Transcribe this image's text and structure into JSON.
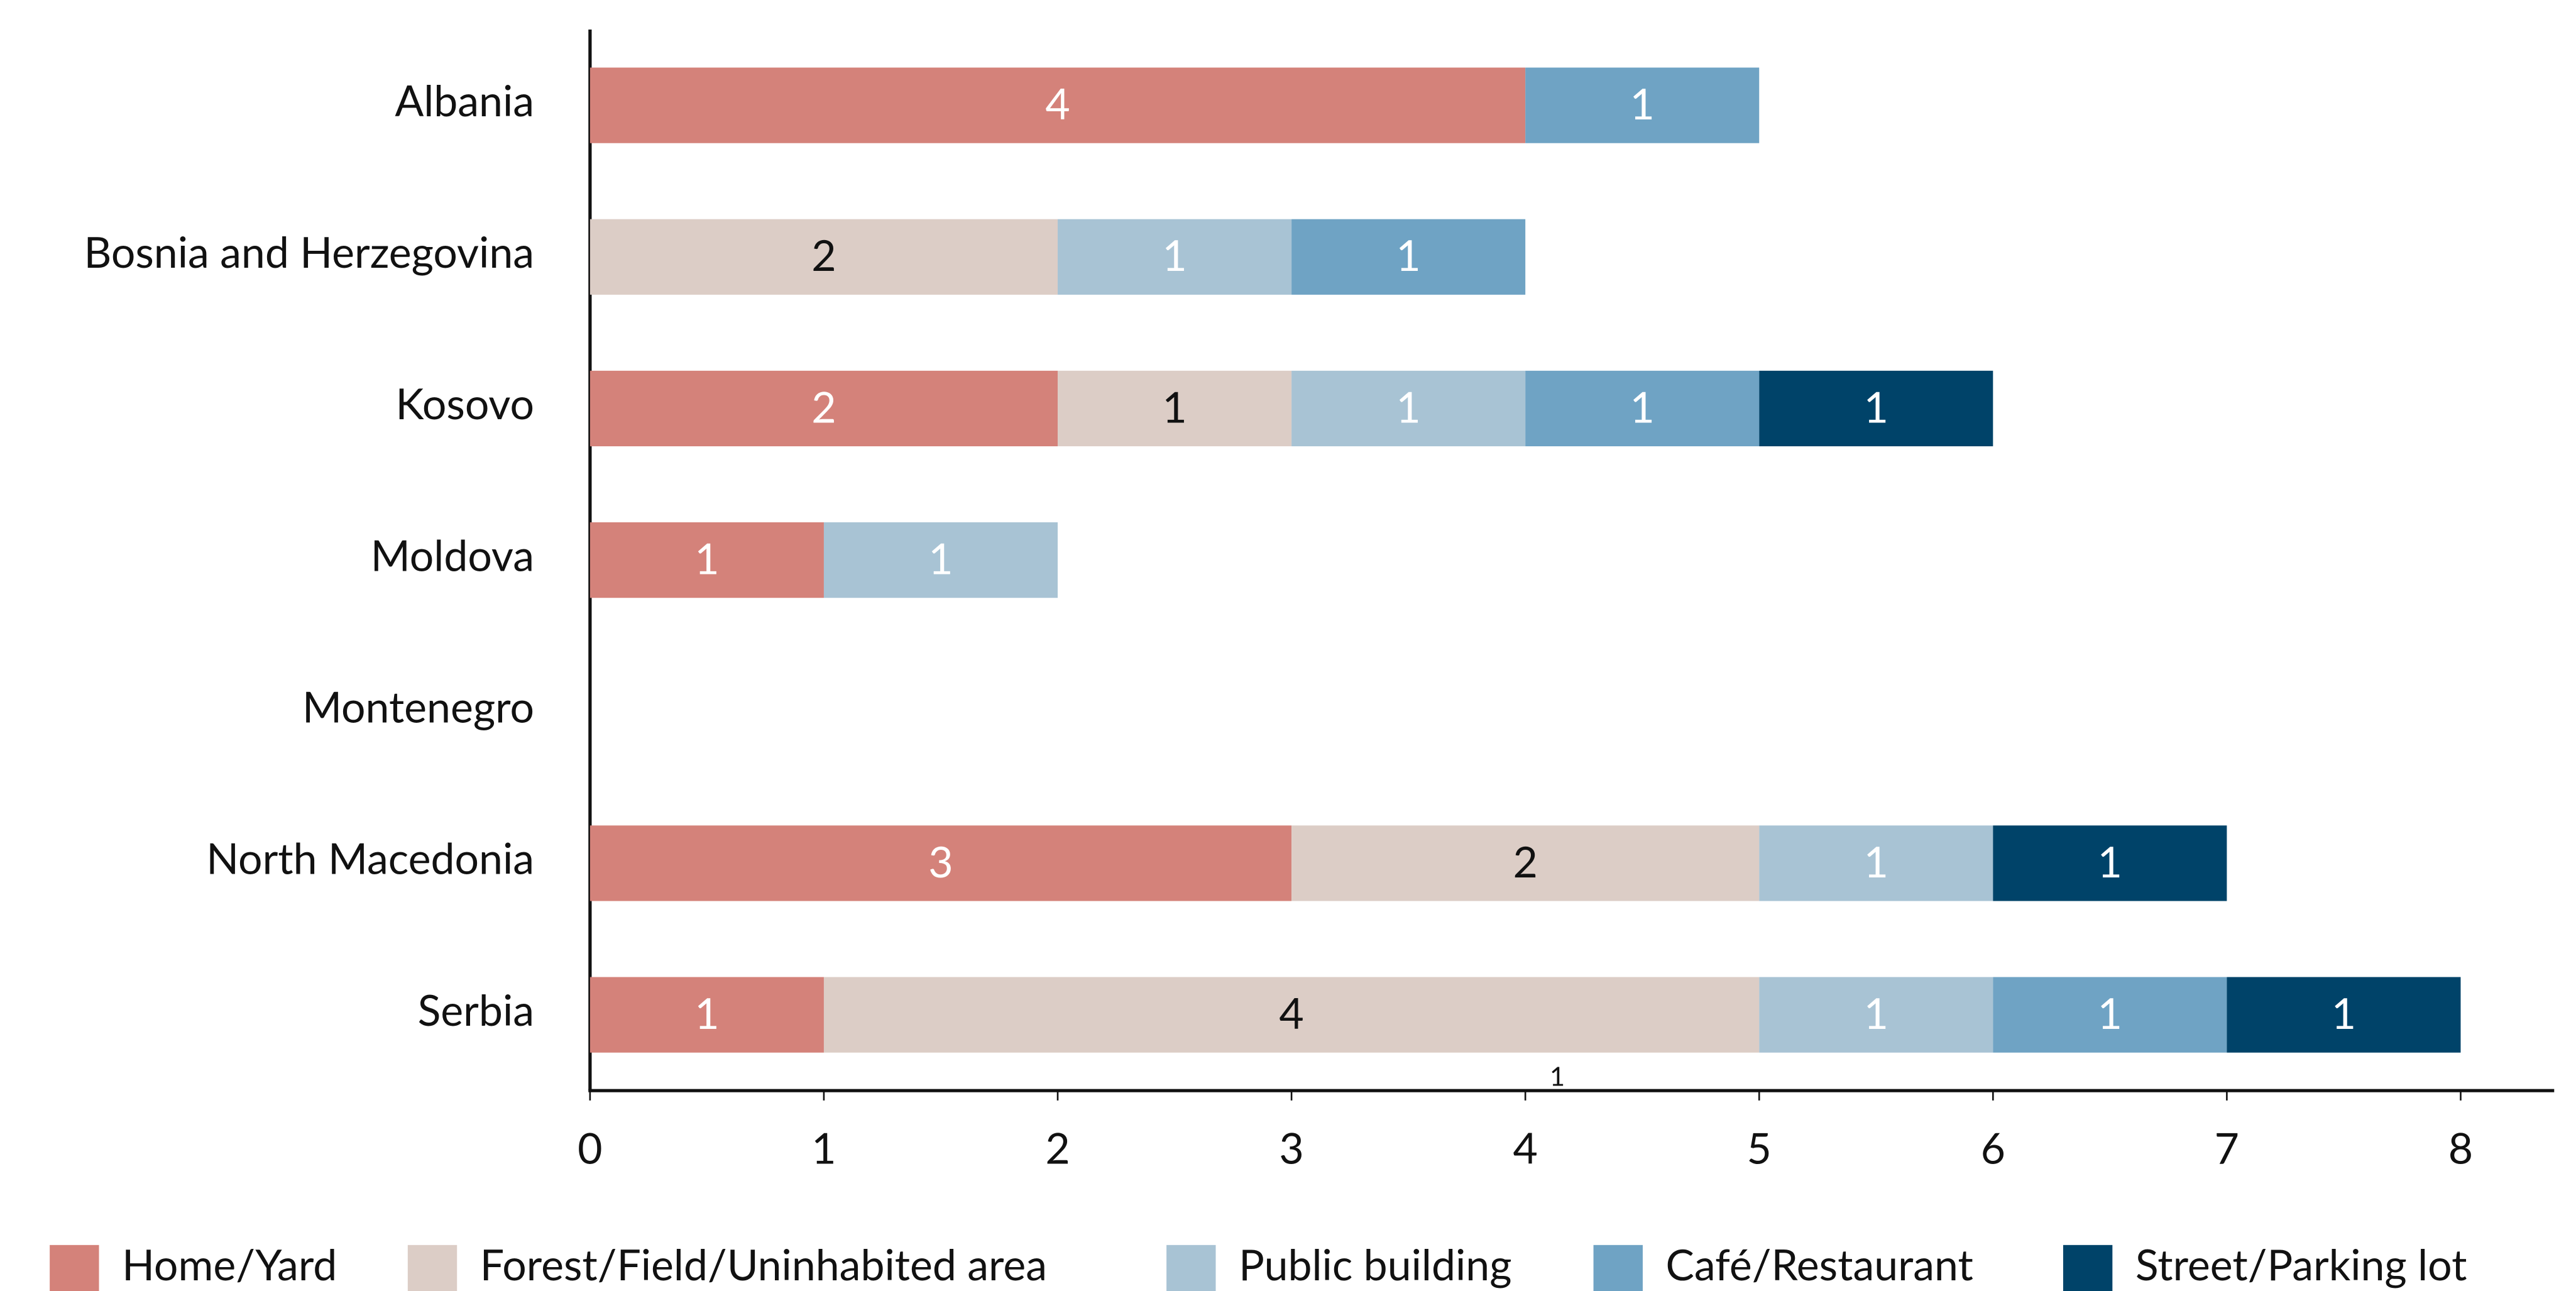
{
  "chart_data": {
    "type": "stacked-barh",
    "categories": [
      "Albania",
      "Bosnia and Herzegovina",
      "Kosovo",
      "Moldova",
      "Montenegro",
      "North Macedonia",
      "Serbia"
    ],
    "series": [
      {
        "name": "Home/Yard",
        "color": "#d4827a",
        "values": [
          4,
          null,
          2,
          1,
          null,
          3,
          1
        ]
      },
      {
        "name": "Forest/Field/Uninhabited area",
        "color": "#dccdc6",
        "values": [
          null,
          2,
          1,
          null,
          null,
          2,
          4
        ]
      },
      {
        "name": "Public building",
        "color": "#a8c3d4",
        "values": [
          null,
          1,
          1,
          1,
          null,
          1,
          1
        ]
      },
      {
        "name": "Café/Restaurant",
        "color": "#6fa3c4",
        "values": [
          1,
          1,
          1,
          null,
          null,
          null,
          1
        ]
      },
      {
        "name": "Street/Parking lot",
        "color": "#004369",
        "values": [
          null,
          null,
          1,
          null,
          null,
          1,
          1
        ]
      }
    ],
    "annotation": "1",
    "xlim": [
      0,
      8.4
    ],
    "xticks": [
      0,
      1,
      2,
      3,
      4,
      5,
      6,
      7,
      8
    ],
    "grid": false,
    "legend": "bottom"
  }
}
